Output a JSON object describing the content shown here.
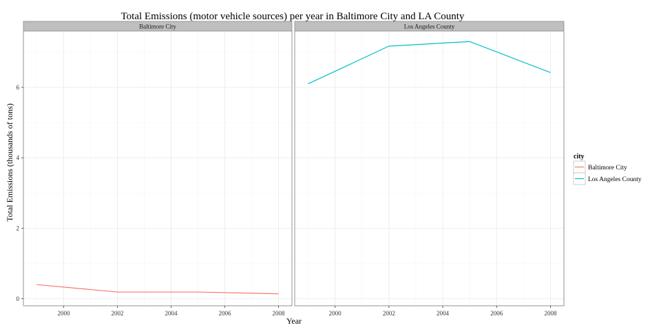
{
  "chart_data": {
    "type": "line",
    "title": "Total Emissions (motor vehicle sources) per year in Baltimore City and LA County",
    "xlabel": "Year",
    "ylabel": "Total Emissions (thousands of tons)",
    "xlim": [
      1998.5,
      2008.5
    ],
    "ylim": [
      -0.2,
      7.6
    ],
    "x_ticks": [
      2000,
      2002,
      2004,
      2006,
      2008
    ],
    "y_ticks": [
      0,
      2,
      4,
      6
    ],
    "grid": true,
    "facets": [
      "Baltimore City",
      "Los Angeles County"
    ],
    "legend": {
      "title": "city",
      "position": "right"
    },
    "series": [
      {
        "name": "Baltimore City",
        "color": "#f8766d",
        "x": [
          1999,
          2002,
          2005,
          2008
        ],
        "values": [
          0.4,
          0.19,
          0.19,
          0.14
        ]
      },
      {
        "name": "Los Angeles County",
        "color": "#00bfc4",
        "x": [
          1999,
          2002,
          2005,
          2008
        ],
        "values": [
          6.1,
          7.17,
          7.3,
          6.42
        ]
      }
    ]
  }
}
